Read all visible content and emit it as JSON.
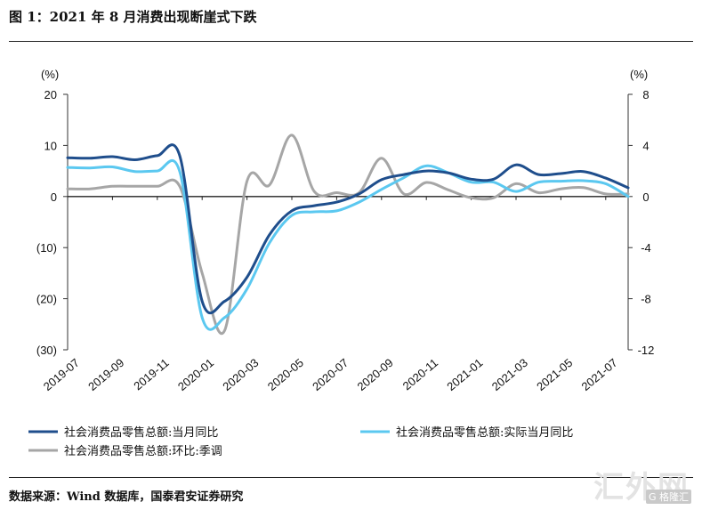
{
  "title": "图 1：2021 年 8 月消费出现断崖式下跌",
  "source": "数据来源：Wind 数据库，国泰君安证券研究",
  "watermark": "汇外网",
  "watermark_badge": "G 格隆汇",
  "chart_data": {
    "type": "line",
    "grid": false,
    "legend_position": "bottom",
    "left_axis": {
      "unit": "(%)",
      "ylim": [
        -30,
        20
      ],
      "ticks": [
        20,
        10,
        0,
        -10,
        -20,
        -30
      ],
      "tick_labels": [
        "20",
        "10",
        "0",
        "(10)",
        "(20)",
        "(30)"
      ],
      "negative_label_color": "#e8141e"
    },
    "right_axis": {
      "unit": "(%)",
      "ylim": [
        -12,
        8
      ],
      "ticks": [
        8,
        4,
        0,
        -4,
        -8,
        -12
      ],
      "tick_labels": [
        "8",
        "4",
        "0",
        "-4",
        "-8",
        "-12"
      ]
    },
    "x": [
      "2019-07",
      "2019-08",
      "2019-09",
      "2019-10",
      "2019-11",
      "2019-12",
      "2020-01",
      "2020-02",
      "2020-03",
      "2020-04",
      "2020-05",
      "2020-06",
      "2020-07",
      "2020-08",
      "2020-09",
      "2020-10",
      "2020-11",
      "2020-12",
      "2021-01",
      "2021-02",
      "2021-03",
      "2021-04",
      "2021-05",
      "2021-06",
      "2021-07",
      "2021-08"
    ],
    "x_tick_labels": [
      "2019-07",
      "2019-09",
      "2019-11",
      "2020-01",
      "2020-03",
      "2020-05",
      "2020-07",
      "2020-09",
      "2020-11",
      "2021-01",
      "2021-03",
      "2021-05",
      "2021-07"
    ],
    "series": [
      {
        "name": "社会消费品零售总额:当月同比",
        "axis": "left",
        "color": "#1f4e8c",
        "values": [
          7.6,
          7.5,
          7.8,
          7.2,
          8.0,
          8.0,
          -20.5,
          -20.5,
          -15.8,
          -7.5,
          -2.8,
          -1.8,
          -1.1,
          0.5,
          3.3,
          4.3,
          5.0,
          4.6,
          3.4,
          3.4,
          6.2,
          4.3,
          4.5,
          4.9,
          3.6,
          1.7
        ]
      },
      {
        "name": "社会消费品零售总额:实际当月同比",
        "axis": "left",
        "color": "#5bc8f0",
        "values": [
          5.7,
          5.6,
          5.8,
          4.9,
          5.0,
          4.9,
          -23.7,
          -23.7,
          -18.1,
          -9.1,
          -3.7,
          -3.0,
          -2.8,
          -1.1,
          1.4,
          3.7,
          6.0,
          4.6,
          2.8,
          2.8,
          1.0,
          2.8,
          3.0,
          3.1,
          2.5,
          0.0
        ]
      },
      {
        "name": "社会消费品零售总额:环比:季调",
        "axis": "right",
        "color": "#a6a6a6",
        "values": [
          0.6,
          0.6,
          0.8,
          0.8,
          0.8,
          0.8,
          -6.0,
          -10.5,
          1.2,
          0.9,
          4.8,
          0.4,
          0.3,
          0.3,
          3.0,
          0.2,
          1.1,
          0.5,
          -0.1,
          -0.1,
          1.0,
          0.3,
          0.6,
          0.7,
          0.2,
          0.2
        ]
      }
    ]
  }
}
